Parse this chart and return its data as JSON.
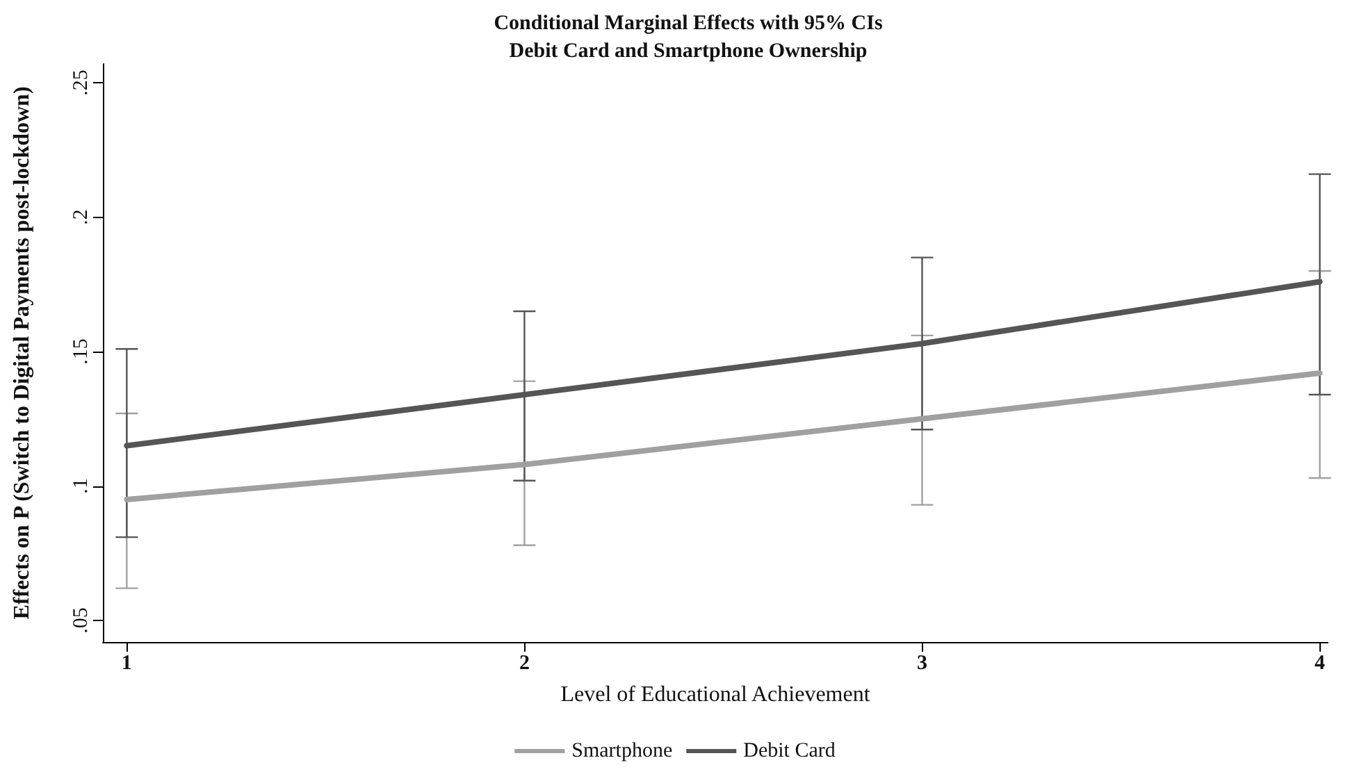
{
  "chart_data": {
    "type": "line",
    "title": "Conditional Marginal Effects with 95% CIs\nDebit Card and Smartphone Ownership",
    "xlabel": "Level of Educational Achievement",
    "ylabel": "Effects on P (Switch to Digital Payments post-lockdown)",
    "x": [
      1,
      2,
      3,
      4
    ],
    "series": [
      {
        "name": "Smartphone",
        "color": "#a0a0a0",
        "values": [
          0.095,
          0.108,
          0.125,
          0.142
        ],
        "errors": [
          [
            0.062,
            0.127
          ],
          [
            0.078,
            0.139
          ],
          [
            0.093,
            0.156
          ],
          [
            0.103,
            0.18
          ]
        ]
      },
      {
        "name": "Debit Card",
        "color": "#555555",
        "values": [
          0.115,
          0.134,
          0.153,
          0.176
        ],
        "errors": [
          [
            0.081,
            0.151
          ],
          [
            0.102,
            0.165
          ],
          [
            0.121,
            0.185
          ],
          [
            0.134,
            0.216
          ]
        ]
      }
    ],
    "xlim": [
      0.94,
      4.02
    ],
    "xticks": [
      1,
      2,
      3,
      4
    ],
    "ylim": [
      0.042,
      0.257
    ],
    "yticks": [
      {
        "value": 0.05,
        "label": ".05"
      },
      {
        "value": 0.1,
        "label": ".1"
      },
      {
        "value": 0.15,
        "label": ".15"
      },
      {
        "value": 0.2,
        "label": ".2"
      },
      {
        "value": 0.25,
        "label": ".25"
      }
    ],
    "grid": false,
    "legend": "bottom",
    "marker": "none",
    "line_style": "solid"
  }
}
